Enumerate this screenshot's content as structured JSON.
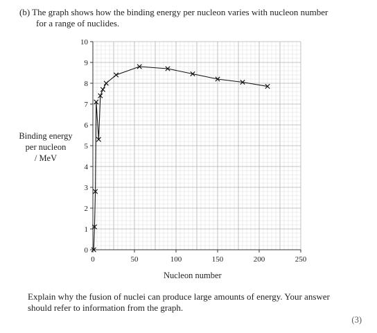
{
  "intro": {
    "line1": "(b) The graph shows how the binding energy per nucleon varies with nucleon number",
    "line2": "for a range of nuclides."
  },
  "question": {
    "text": "Explain why the fusion of nuclei can produce large amounts of energy. Your answer should refer to information from the graph.",
    "marks": "(3)"
  },
  "chart_data": {
    "type": "line",
    "title": "",
    "xlabel": "Nucleon number",
    "ylabel_lines": [
      "Binding energy",
      "per nucleon",
      "/ MeV"
    ],
    "xlim": [
      0,
      250
    ],
    "ylim": [
      0,
      10
    ],
    "xticks": [
      0,
      50,
      100,
      150,
      200,
      250
    ],
    "yticks": [
      0,
      1,
      2,
      3,
      4,
      5,
      6,
      7,
      8,
      9,
      10
    ],
    "grid": true,
    "marker": "cross",
    "points": [
      {
        "x": 1,
        "y": 0
      },
      {
        "x": 2,
        "y": 1.1
      },
      {
        "x": 3,
        "y": 2.8
      },
      {
        "x": 4,
        "y": 7.1
      },
      {
        "x": 7,
        "y": 5.3
      },
      {
        "x": 9,
        "y": 7.4
      },
      {
        "x": 12,
        "y": 7.7
      },
      {
        "x": 16,
        "y": 8.0
      },
      {
        "x": 28,
        "y": 8.4
      },
      {
        "x": 56,
        "y": 8.8
      },
      {
        "x": 90,
        "y": 8.7
      },
      {
        "x": 120,
        "y": 8.45
      },
      {
        "x": 150,
        "y": 8.2
      },
      {
        "x": 180,
        "y": 8.05
      },
      {
        "x": 210,
        "y": 7.85
      }
    ]
  }
}
